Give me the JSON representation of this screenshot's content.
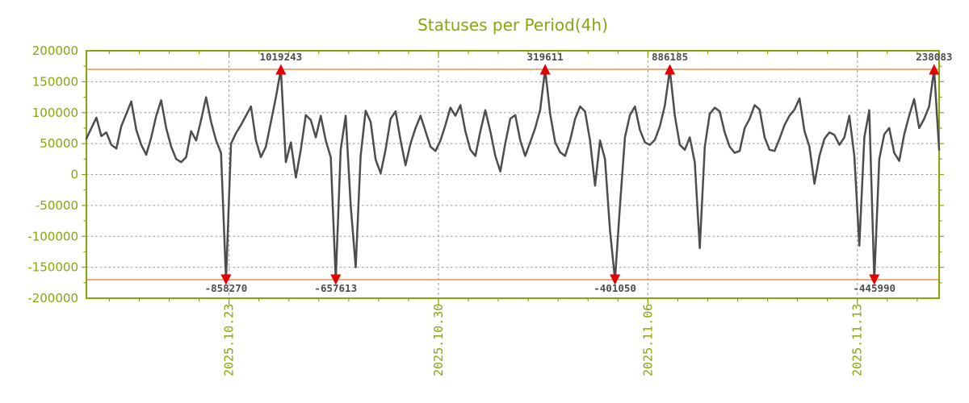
{
  "page": {
    "background": "#ffffff"
  },
  "chart_data": {
    "type": "line",
    "title": "Statuses per Period(4h)",
    "period": "4h",
    "grid": true,
    "legend": false,
    "y_axis": {
      "min": -200000,
      "max": 200000,
      "tick_step": 50000,
      "minor_tick_step": 25000,
      "tick_labels": [
        "200000",
        "150000",
        "100000",
        "50000",
        "0",
        "-50000",
        "-100000",
        "-150000",
        "-200000"
      ]
    },
    "x_axis": {
      "major_ticks": [
        {
          "position": 28.6,
          "label": "2025.10.23"
        },
        {
          "position": 70.6,
          "label": "2025.10.30"
        },
        {
          "position": 112.6,
          "label": "2025.11.06"
        },
        {
          "position": 154.6,
          "label": "2025.11.13"
        }
      ],
      "minor_tick_step": 6,
      "minor_tick_offset": 4.6,
      "points_per_day": 6
    },
    "clip_value": 170000,
    "values": [
      58000,
      75000,
      92000,
      62000,
      68000,
      48000,
      42000,
      78000,
      98000,
      118000,
      72000,
      48000,
      32000,
      60000,
      95000,
      120000,
      75000,
      45000,
      25000,
      20000,
      28000,
      70000,
      55000,
      88000,
      125000,
      85000,
      55000,
      35000,
      -858270,
      50000,
      67000,
      80000,
      95000,
      110000,
      55000,
      28000,
      45000,
      85000,
      125000,
      1019243,
      20000,
      52000,
      -5000,
      40000,
      96000,
      88000,
      60000,
      95000,
      55000,
      28000,
      -657613,
      40000,
      95000,
      -50000,
      -150000,
      30000,
      103000,
      85000,
      24000,
      2000,
      40000,
      90000,
      102000,
      55000,
      15000,
      50000,
      75000,
      95000,
      70000,
      45000,
      38000,
      55000,
      80000,
      108000,
      95000,
      112000,
      70000,
      40000,
      30000,
      70000,
      104000,
      70000,
      30000,
      5000,
      50000,
      90000,
      96000,
      55000,
      30000,
      52000,
      75000,
      105000,
      319611,
      98000,
      52000,
      36000,
      30000,
      55000,
      90000,
      110000,
      102000,
      55000,
      -18000,
      55000,
      25000,
      -90000,
      -401050,
      -50000,
      60000,
      96000,
      110000,
      72000,
      52000,
      48000,
      56000,
      78000,
      112000,
      886185,
      95000,
      48000,
      40000,
      60000,
      20000,
      -119000,
      45000,
      98000,
      108000,
      102000,
      68000,
      45000,
      35000,
      38000,
      75000,
      90000,
      112000,
      105000,
      60000,
      40000,
      38000,
      58000,
      80000,
      95000,
      105000,
      123000,
      70000,
      45000,
      -15000,
      30000,
      58000,
      68000,
      64000,
      48000,
      60000,
      95000,
      30000,
      -115000,
      60000,
      104000,
      -445990,
      25000,
      65000,
      75000,
      35000,
      22000,
      65000,
      95000,
      122000,
      75000,
      90000,
      110000,
      238083,
      40000
    ],
    "annotations": [
      {
        "index": 28,
        "value": -858270,
        "label": "-858270",
        "direction": "down"
      },
      {
        "index": 39,
        "value": 1019243,
        "label": "1019243",
        "direction": "up"
      },
      {
        "index": 50,
        "value": -657613,
        "label": "-657613",
        "direction": "down"
      },
      {
        "index": 92,
        "value": 319611,
        "label": "319611",
        "direction": "up"
      },
      {
        "index": 106,
        "value": -401050,
        "label": "-401050",
        "direction": "down"
      },
      {
        "index": 117,
        "value": 886185,
        "label": "886185",
        "direction": "up"
      },
      {
        "index": 158,
        "value": -445990,
        "label": "-445990",
        "direction": "down"
      },
      {
        "index": 170,
        "value": 238083,
        "label": "238083",
        "direction": "up"
      }
    ],
    "colors": {
      "axis": "#84a80a",
      "grid": "#999999",
      "line": "#4d4d4d",
      "clip_line": "#e8915a",
      "marker": "#e60000",
      "annotation_text": "#4d4d4d"
    }
  }
}
